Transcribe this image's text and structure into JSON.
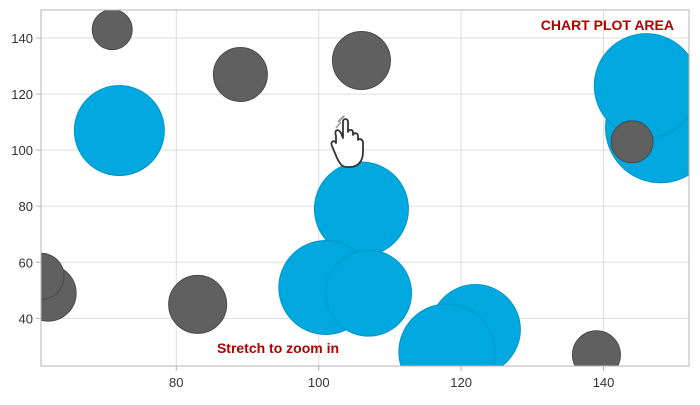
{
  "overlay": {
    "plot_area_label": "CHART PLOT AREA",
    "hint": "Stretch to zoom in",
    "gesture_icon": "pinch-zoom-hand-icon",
    "label_color": "#b00000"
  },
  "chart_data": {
    "type": "scatter",
    "xlim": [
      61,
      152
    ],
    "ylim": [
      23,
      150
    ],
    "x_ticks": [
      80,
      100,
      120,
      140
    ],
    "y_ticks": [
      40,
      60,
      80,
      100,
      120,
      140
    ],
    "grid": true,
    "series": [
      {
        "color": "#00a8e0",
        "points": [
          {
            "x": 72,
            "y": 107,
            "r": 45
          },
          {
            "x": 148,
            "y": 108,
            "r": 55
          },
          {
            "x": 146,
            "y": 123,
            "r": 52
          },
          {
            "x": 106,
            "y": 79,
            "r": 47
          },
          {
            "x": 101,
            "y": 51,
            "r": 47
          },
          {
            "x": 107,
            "y": 49,
            "r": 43
          },
          {
            "x": 122,
            "y": 36,
            "r": 45
          },
          {
            "x": 118,
            "y": 28,
            "r": 48
          }
        ]
      },
      {
        "color": "#606060",
        "points": [
          {
            "x": 71,
            "y": 143,
            "r": 20
          },
          {
            "x": 89,
            "y": 127,
            "r": 27
          },
          {
            "x": 106,
            "y": 132,
            "r": 29
          },
          {
            "x": 144,
            "y": 103,
            "r": 21
          },
          {
            "x": 62,
            "y": 49,
            "r": 28
          },
          {
            "x": 61,
            "y": 55,
            "r": 23
          },
          {
            "x": 83,
            "y": 45,
            "r": 29
          },
          {
            "x": 139,
            "y": 27,
            "r": 24
          }
        ]
      }
    ]
  }
}
